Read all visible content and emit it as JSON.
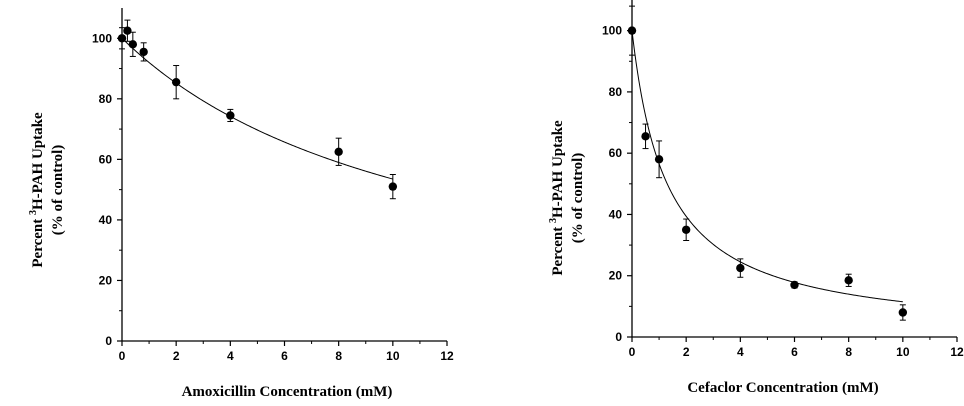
{
  "chart_data": [
    {
      "type": "scatter",
      "xlabel": "Amoxicillin Concentration (mM)",
      "ylabel_line1": "Percent ³H-PAH Uptake",
      "ylabel_line2": "(% of control)",
      "xlim": [
        0,
        12
      ],
      "ylim": [
        0,
        110
      ],
      "xticks": [
        0,
        2,
        4,
        6,
        8,
        10,
        12
      ],
      "yticks": [
        0,
        20,
        40,
        60,
        80,
        100
      ],
      "grid": false,
      "points": [
        {
          "x": 0,
          "y": 100,
          "err": 3.5
        },
        {
          "x": 0.2,
          "y": 102.5,
          "err": 3.5
        },
        {
          "x": 0.4,
          "y": 98,
          "err": 4
        },
        {
          "x": 0.8,
          "y": 95.5,
          "err": 3
        },
        {
          "x": 2,
          "y": 85.5,
          "err": 5.5
        },
        {
          "x": 4,
          "y": 74.5,
          "err": 2
        },
        {
          "x": 8,
          "y": 62.5,
          "err": 4.5
        },
        {
          "x": 10,
          "y": 51,
          "err": 4
        }
      ],
      "fit": {
        "model": "100*K/(K+x)",
        "K": 11.5
      }
    },
    {
      "type": "scatter",
      "xlabel": "Cefaclor Concentration (mM)",
      "ylabel_line1": "Percent ³H-PAH Uptake",
      "ylabel_line2": "(% of control)",
      "xlim": [
        0,
        12
      ],
      "ylim": [
        0,
        110
      ],
      "xticks": [
        0,
        2,
        4,
        6,
        8,
        10,
        12
      ],
      "yticks": [
        0,
        20,
        40,
        60,
        80,
        100
      ],
      "grid": false,
      "points": [
        {
          "x": 0,
          "y": 100,
          "err": 8
        },
        {
          "x": 0.5,
          "y": 65.5,
          "err": 4
        },
        {
          "x": 1,
          "y": 58,
          "err": 6
        },
        {
          "x": 2,
          "y": 35,
          "err": 3.5
        },
        {
          "x": 4,
          "y": 22.5,
          "err": 3
        },
        {
          "x": 6,
          "y": 17,
          "err": 1
        },
        {
          "x": 8,
          "y": 18.5,
          "err": 2
        },
        {
          "x": 10,
          "y": 8,
          "err": 2.5
        }
      ],
      "fit": {
        "model": "100*K/(K+x)",
        "K": 1.3
      }
    }
  ]
}
